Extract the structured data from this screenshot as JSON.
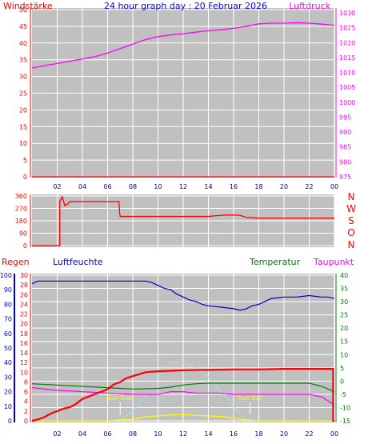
{
  "chart_data": [
    {
      "type": "line",
      "title": "24 hour graph day : 20 Februar 2026",
      "y_left_label": "Windstärke",
      "y_right_label": "Luftdruck",
      "x_ticks": [
        "02",
        "04",
        "06",
        "08",
        "10",
        "12",
        "14",
        "16",
        "18",
        "20",
        "22",
        "00"
      ],
      "x_range": [
        0,
        24
      ],
      "y_left_range": [
        0,
        50
      ],
      "y_left_ticks": [
        "0",
        "5",
        "10",
        "15",
        "20",
        "25",
        "30",
        "35",
        "40",
        "45",
        "50"
      ],
      "y_right_range": [
        975,
        1030
      ],
      "y_right_ticks": [
        "975",
        "980",
        "985",
        "990",
        "995",
        "1000",
        "1005",
        "1010",
        "1015",
        "1020",
        "1025",
        "1030"
      ],
      "series": [
        {
          "name": "Luftdruck",
          "axis": "right",
          "color": "#ff00ff",
          "x": [
            0,
            1,
            2,
            3,
            4,
            5,
            6,
            7,
            8,
            9,
            10,
            11,
            12,
            13,
            14,
            15,
            16,
            17,
            18,
            19,
            20,
            21,
            22,
            23,
            24
          ],
          "y": [
            1011.5,
            1012.3,
            1013.0,
            1013.8,
            1014.5,
            1015.3,
            1016.5,
            1018.0,
            1019.5,
            1021.0,
            1022.0,
            1022.6,
            1023.0,
            1023.5,
            1024.0,
            1024.3,
            1024.8,
            1025.5,
            1026.3,
            1026.5,
            1026.5,
            1026.7,
            1026.5,
            1026.2,
            1025.8
          ]
        },
        {
          "name": "Windstärke",
          "axis": "left",
          "color": "#ff0000",
          "x": [
            0,
            24
          ],
          "y": [
            0,
            0
          ]
        }
      ],
      "colors": {
        "left": "#ff0000",
        "right": "#ff00ff",
        "title": "#0000ff"
      }
    },
    {
      "type": "line",
      "y_range": [
        0,
        360
      ],
      "y_ticks": [
        "0",
        "90",
        "180",
        "270",
        "360"
      ],
      "x_ticks": [
        "02",
        "04",
        "06",
        "08",
        "10",
        "12",
        "14",
        "16",
        "18",
        "20",
        "22",
        "00"
      ],
      "x_range": [
        0,
        24
      ],
      "compass_labels": [
        "N",
        "W",
        "S",
        "O",
        "N"
      ],
      "series": [
        {
          "color": "#ff0000",
          "x": [
            0,
            2.2,
            2.2,
            2.4,
            2.6,
            2.8,
            3.0,
            4.0,
            5.0,
            6.0,
            6.9,
            6.95,
            7.0,
            8,
            10,
            12,
            14,
            15.0,
            15.5,
            16.0,
            16.5,
            17.0,
            18,
            20,
            22,
            24
          ],
          "y": [
            0,
            0,
            320,
            355,
            290,
            300,
            320,
            320,
            320,
            320,
            320,
            240,
            212,
            212,
            212,
            212,
            212,
            220,
            222,
            222,
            220,
            205,
            200,
            200,
            200,
            200
          ]
        }
      ]
    },
    {
      "type": "line",
      "labels": {
        "rain": "Regen",
        "humidity": "Luftfeuchte",
        "temperature": "Temperatur",
        "dewpoint": "Taupunkt"
      },
      "sun_rise_label": "Sun Rise",
      "sun_set_label": "Sun Set",
      "sun_rise_x": 7.0,
      "sun_set_x": 17.3,
      "x_ticks": [
        "02",
        "04",
        "06",
        "08",
        "10",
        "12",
        "14",
        "16",
        "18",
        "20",
        "22",
        "00"
      ],
      "x_range": [
        0,
        24
      ],
      "humidity_range": [
        0,
        100
      ],
      "humidity_ticks": [
        "0",
        "10",
        "20",
        "30",
        "40",
        "50",
        "60",
        "70",
        "80",
        "90",
        "100"
      ],
      "rain_range": [
        0,
        30
      ],
      "rain_ticks": [
        "0",
        "2",
        "4",
        "6",
        "8",
        "10",
        "12",
        "14",
        "16",
        "18",
        "20",
        "22",
        "24",
        "26",
        "28",
        "30"
      ],
      "temp_range": [
        -15,
        40
      ],
      "temp_ticks": [
        "-15",
        "-10",
        "-5",
        "0",
        "5",
        "10",
        "15",
        "20",
        "25",
        "30",
        "35",
        "40"
      ],
      "series": [
        {
          "name": "Luftfeuchte",
          "axis": "humidity",
          "color": "#0000cc",
          "x": [
            0,
            0.2,
            0.5,
            1,
            2,
            3,
            4,
            6,
            8,
            9,
            9.5,
            10,
            10.5,
            11,
            11.5,
            12,
            12.5,
            13,
            13.5,
            14,
            15,
            16,
            16.5,
            17,
            17.5,
            18,
            18.5,
            19,
            20,
            21,
            22,
            23,
            23.5,
            24
          ],
          "y": [
            94,
            95,
            96,
            96,
            96,
            96,
            96,
            96,
            96,
            96,
            95,
            93,
            91,
            90,
            87,
            85,
            83,
            82,
            80,
            79,
            78,
            77,
            76,
            77,
            79,
            80,
            82,
            84,
            85,
            85,
            86,
            85,
            85,
            84
          ]
        },
        {
          "name": "Temperatur",
          "axis": "temp",
          "color": "#008000",
          "x": [
            0,
            2,
            4,
            6,
            8,
            10,
            11,
            12,
            13,
            14,
            15,
            16,
            18,
            20,
            22,
            23,
            24
          ],
          "y": [
            -1,
            -1.5,
            -2,
            -2.5,
            -3,
            -2.8,
            -2.3,
            -1.5,
            -1,
            -0.8,
            -0.8,
            -0.8,
            -0.8,
            -0.8,
            -0.8,
            -2,
            -4
          ]
        },
        {
          "name": "Taupunkt",
          "axis": "temp",
          "color": "#ff00ff",
          "x": [
            0,
            2,
            4,
            6,
            8,
            10,
            11,
            12,
            13,
            14,
            15,
            16,
            18,
            20,
            22,
            23,
            24
          ],
          "y": [
            -2.5,
            -3.5,
            -4,
            -4.5,
            -5,
            -5,
            -4,
            -4,
            -4.5,
            -4.5,
            -4.5,
            -5,
            -5,
            -5,
            -5,
            -6,
            -9
          ]
        },
        {
          "name": "Regen",
          "axis": "rain",
          "color": "#ff0000",
          "x": [
            0,
            0.5,
            1,
            1.5,
            2,
            2.5,
            3,
            3.5,
            4,
            4.5,
            5,
            5.5,
            6,
            6.5,
            7,
            7.5,
            8,
            9,
            10,
            12,
            14,
            16,
            18,
            20,
            22,
            23.9,
            23.9,
            24
          ],
          "y": [
            0,
            0.3,
            0.8,
            1.5,
            2.0,
            2.5,
            2.8,
            3.5,
            4.5,
            5.0,
            5.5,
            6.0,
            6.5,
            7.5,
            8.0,
            8.8,
            9.2,
            10.0,
            10.2,
            10.4,
            10.5,
            10.6,
            10.6,
            10.7,
            10.7,
            10.7,
            0,
            0
          ]
        },
        {
          "name": "Solar",
          "axis": "rain",
          "color": "#ffff00",
          "x": [
            0,
            6,
            7,
            8,
            9,
            10,
            11,
            12,
            13,
            14,
            15,
            16,
            17,
            18,
            24
          ],
          "y": [
            0,
            0,
            0.2,
            0.3,
            0.8,
            1.0,
            1.2,
            1.3,
            1.1,
            1.0,
            0.9,
            0.6,
            0.2,
            0,
            0
          ]
        },
        {
          "name": "UV",
          "axis": "rain",
          "color": "#add8e6",
          "x": [
            7,
            8,
            9,
            10,
            11,
            12,
            13,
            14,
            15,
            16,
            17
          ],
          "y": [
            0,
            2,
            5,
            9,
            12,
            12,
            11,
            9,
            6,
            3,
            0
          ]
        }
      ]
    }
  ]
}
